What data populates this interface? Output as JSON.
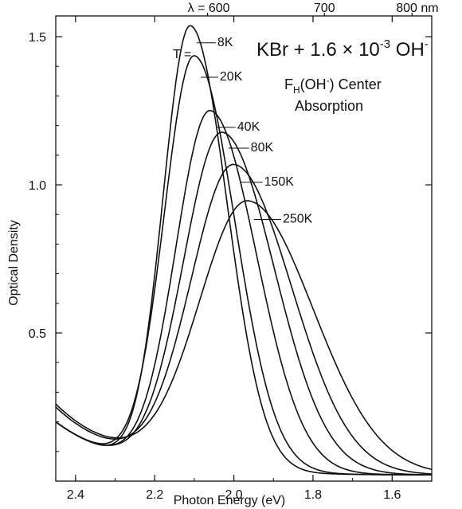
{
  "chart_data": {
    "type": "line",
    "title": "",
    "xlabel": "Photon Energy (eV)",
    "ylabel": "Optical Density",
    "x_reversed": true,
    "xlim": [
      2.45,
      1.5
    ],
    "ylim": [
      0.0,
      1.57
    ],
    "x_ticks": [
      2.4,
      2.2,
      2.0,
      1.8,
      1.6
    ],
    "x_tick_labels": [
      "2.4",
      "2.2",
      "2.0",
      "1.8",
      "1.6"
    ],
    "y_ticks": [
      0.5,
      1.0,
      1.5
    ],
    "y_tick_labels": [
      "0.5",
      "1.0",
      "1.5"
    ],
    "top_axis": {
      "ticks_nm": [
        600,
        700,
        800
      ],
      "labels": [
        "λ = 600",
        "700",
        "800 nm"
      ]
    },
    "annotations": {
      "sample": "KBr + 1.6 × 10",
      "sample_exp": "-3",
      "sample_tail": " OH",
      "sample_tail_sup": "-",
      "center_line1": "F",
      "center_line1_sub": "H",
      "center_line1_rest": "(OH",
      "center_line1_sup": "-",
      "center_line1_end": ") Center",
      "center_line2": "Absorption",
      "t_prefix": "T ="
    },
    "grid": false,
    "series": [
      {
        "name": "8K",
        "peak_x": 2.11,
        "peak_y": 1.49,
        "fwhm": 0.19,
        "tail": 0.18
      },
      {
        "name": "20K",
        "peak_x": 2.1,
        "peak_y": 1.39,
        "fwhm": 0.21,
        "tail": 0.18
      },
      {
        "name": "40K",
        "peak_x": 2.06,
        "peak_y": 1.21,
        "fwhm": 0.24,
        "tail": 0.18
      },
      {
        "name": "80K",
        "peak_x": 2.03,
        "peak_y": 1.14,
        "fwhm": 0.27,
        "tail": 0.18
      },
      {
        "name": "150K",
        "peak_x": 2.0,
        "peak_y": 1.03,
        "fwhm": 0.3,
        "tail": 0.23
      },
      {
        "name": "250K",
        "peak_x": 1.965,
        "peak_y": 0.91,
        "fwhm": 0.34,
        "tail": 0.24
      }
    ]
  }
}
